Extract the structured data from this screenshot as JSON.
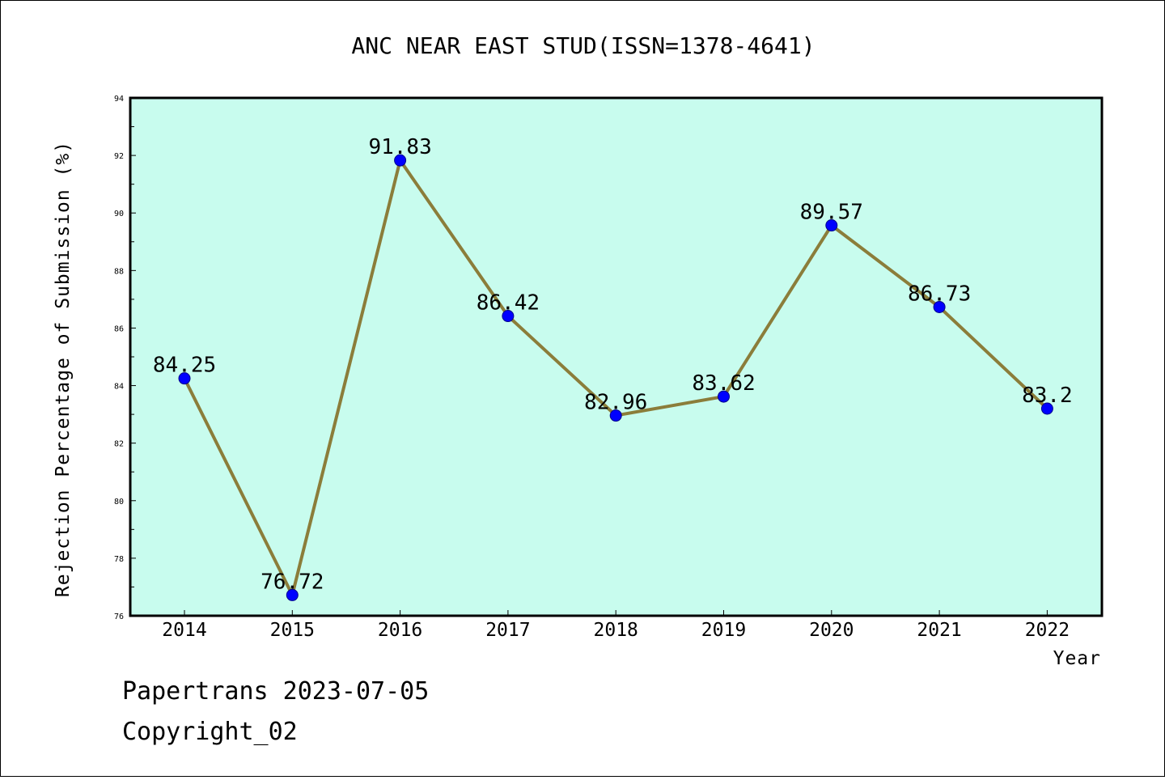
{
  "chart_data": {
    "type": "line",
    "title": "ANC NEAR EAST STUD(ISSN=1378-4641)",
    "xlabel": "Year",
    "ylabel": "Rejection Percentage of Submission (%)",
    "categories": [
      "2014",
      "2015",
      "2016",
      "2017",
      "2018",
      "2019",
      "2020",
      "2021",
      "2022"
    ],
    "values": [
      84.25,
      76.72,
      91.83,
      86.42,
      82.96,
      83.62,
      89.57,
      86.73,
      83.2
    ],
    "data_labels": [
      "84.25",
      "76.72",
      "91.83",
      "86.42",
      "82.96",
      "83.62",
      "89.57",
      "86.73",
      "83.2"
    ],
    "ylim": [
      76,
      94
    ],
    "yticks": [
      "76",
      "78",
      "80",
      "82",
      "84",
      "86",
      "88",
      "90",
      "92",
      "94"
    ],
    "grid": false,
    "legend": "none",
    "colors": {
      "plot_background": "#c8fcee",
      "line": "#8b7d3a",
      "marker": "#0000ff"
    }
  },
  "footer": {
    "line1": "Papertrans 2023-07-05",
    "line2": "Copyright_02"
  }
}
